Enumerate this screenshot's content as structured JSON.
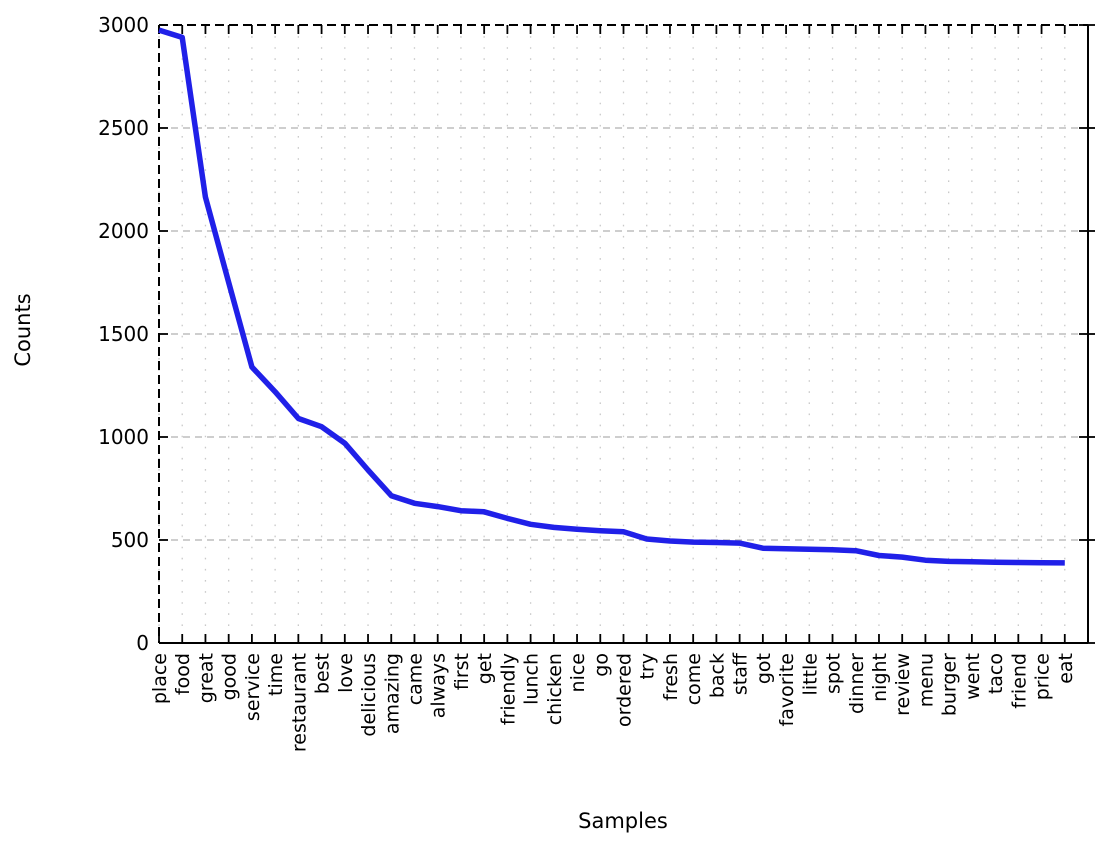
{
  "chart_data": {
    "type": "line",
    "title": "",
    "xlabel": "Samples",
    "ylabel": "Counts",
    "categories": [
      "place",
      "food",
      "great",
      "good",
      "service",
      "time",
      "restaurant",
      "best",
      "love",
      "delicious",
      "amazing",
      "came",
      "always",
      "first",
      "get",
      "friendly",
      "lunch",
      "chicken",
      "nice",
      "go",
      "ordered",
      "try",
      "fresh",
      "come",
      "back",
      "staff",
      "got",
      "favorite",
      "little",
      "spot",
      "dinner",
      "night",
      "review",
      "menu",
      "burger",
      "went",
      "taco",
      "friend",
      "price",
      "eat"
    ],
    "values": [
      2975,
      2940,
      2165,
      1750,
      1340,
      1220,
      1090,
      1050,
      970,
      840,
      715,
      678,
      662,
      642,
      637,
      605,
      576,
      561,
      552,
      545,
      540,
      505,
      495,
      490,
      488,
      485,
      460,
      458,
      455,
      453,
      448,
      425,
      417,
      402,
      396,
      394,
      392,
      391,
      390,
      389
    ],
    "ylim": [
      0,
      3000
    ],
    "yticks": [
      0,
      500,
      1000,
      1500,
      2000,
      2500,
      3000
    ],
    "x_slots": 40,
    "grid": {
      "horizontal": "dashed at major y ticks",
      "vertical": "dotted at every category"
    },
    "legend": "none",
    "line_color": "#2020e8",
    "line_width": 5.5,
    "spine_color": "#000000"
  }
}
